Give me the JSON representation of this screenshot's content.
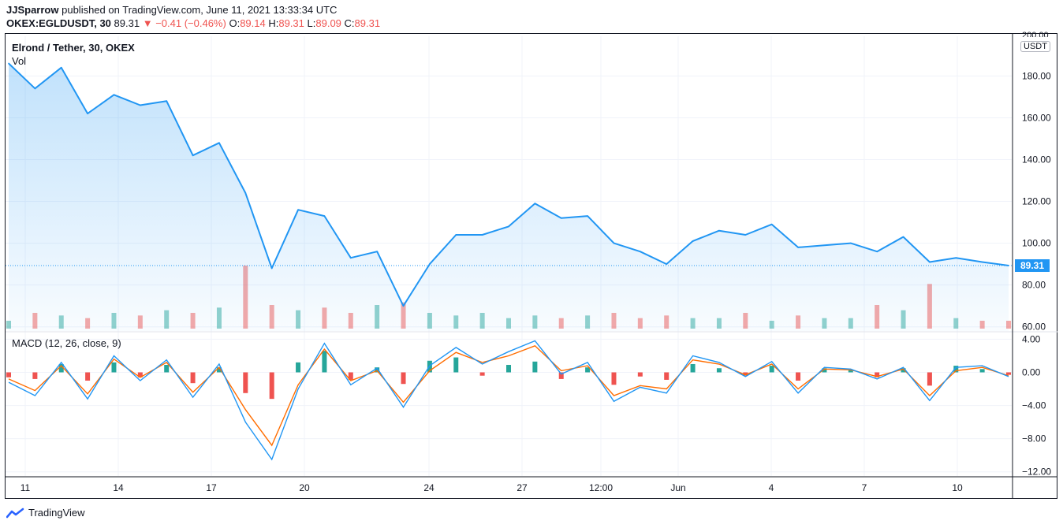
{
  "header": {
    "author": "JJSparrow",
    "published_text": "published on TradingView.com, June 11, 2021 13:33:34 UTC",
    "symbol": "OKEX:EGLDUSDT, 30",
    "last": "89.31",
    "change": "▼ −0.41 (−0.46%)",
    "o_label": "O:",
    "o_value": "89.14",
    "h_label": "H:",
    "h_value": "89.31",
    "l_label": "L:",
    "l_value": "89.09",
    "c_label": "C:",
    "c_value": "89.31"
  },
  "pane": {
    "title": "Elrond / Tether, 30, OKEX",
    "vol_label": "Vol",
    "macd_label": "MACD (12, 26, close, 9)",
    "currency": "USDT",
    "last_price_badge": "89.31",
    "top_tick_partial": "200.00"
  },
  "footer": {
    "brand": "TradingView"
  },
  "colors": {
    "price_line": "#2196f3",
    "macd_line": "#2196f3",
    "signal_line": "#ff6d00",
    "hist_up": "#26a69a",
    "hist_down": "#ef5350",
    "grid": "#f0f3fa"
  },
  "chart_data": [
    {
      "type": "area",
      "y_ticks": [
        "180.00",
        "160.00",
        "140.00",
        "120.00",
        "100.00",
        "80.00",
        "60.00"
      ],
      "y_tick_values": [
        180,
        160,
        140,
        120,
        100,
        80,
        60
      ],
      "ylim": [
        58,
        199
      ],
      "x_ticks": [
        "11",
        "14",
        "17",
        "20",
        "24",
        "27",
        "12:00",
        "Jun",
        "4",
        "7",
        "10"
      ],
      "x": [
        "11",
        "12",
        "13",
        "14",
        "15",
        "16",
        "17",
        "18",
        "19",
        "19.3",
        "19.6",
        "20",
        "21",
        "22",
        "23",
        "23.5",
        "24",
        "25",
        "26",
        "26.5",
        "27",
        "28",
        "28.5",
        "29",
        "30",
        "31",
        "Jun",
        "2",
        "3",
        "3.5",
        "4",
        "5",
        "6",
        "7",
        "7.5",
        "8",
        "9",
        "10",
        "11"
      ],
      "series": [
        {
          "values": [
            186,
            174,
            184,
            162,
            171,
            166,
            168,
            142,
            148,
            124,
            88,
            116,
            113,
            93,
            96,
            70,
            90,
            104,
            104,
            108,
            119,
            112,
            113,
            100,
            96,
            90,
            101,
            106,
            104,
            109,
            98,
            99,
            100,
            96,
            103,
            91,
            93,
            91,
            89.31
          ]
        }
      ],
      "last_value": 89.31
    },
    {
      "type": "bar",
      "name": "Vol",
      "values": [
        3,
        6,
        5,
        4,
        6,
        5,
        7,
        6,
        8,
        24,
        9,
        7,
        8,
        6,
        9,
        10,
        6,
        5,
        6,
        4,
        5,
        4,
        5,
        6,
        4,
        5,
        4,
        4,
        6,
        3,
        5,
        4,
        4,
        9,
        7,
        17,
        4,
        3,
        3
      ]
    },
    {
      "type": "line",
      "name": "MACD (12, 26, close, 9)",
      "y_ticks": [
        "4.00",
        "0.00",
        "−4.00",
        "−8.00",
        "−12.00"
      ],
      "y_tick_values": [
        4,
        0,
        -4,
        -8,
        -12
      ],
      "ylim": [
        -12.5,
        4.8
      ],
      "macd": [
        -1.2,
        -2.8,
        1.2,
        -3.2,
        2.0,
        -1.0,
        1.5,
        -3.0,
        1.0,
        -6.0,
        -10.5,
        -2.0,
        3.5,
        -1.5,
        0.5,
        -4.2,
        0.8,
        3.0,
        1.0,
        2.5,
        3.8,
        -0.2,
        1.2,
        -3.5,
        -1.8,
        -2.5,
        2.0,
        1.2,
        -0.5,
        1.3,
        -2.5,
        0.6,
        0.4,
        -0.8,
        0.6,
        -3.4,
        0.6,
        0.8,
        -0.5
      ],
      "signal": [
        -0.8,
        -2.2,
        0.8,
        -2.6,
        1.6,
        -0.6,
        1.2,
        -2.4,
        0.6,
        -4.5,
        -8.8,
        -1.5,
        2.8,
        -1.0,
        0.2,
        -3.6,
        0.2,
        2.4,
        1.2,
        2.0,
        3.2,
        0.2,
        0.8,
        -2.8,
        -1.6,
        -2.0,
        1.5,
        1.0,
        -0.3,
        1.0,
        -2.0,
        0.4,
        0.3,
        -0.5,
        0.4,
        -2.8,
        0.2,
        0.6,
        -0.4
      ],
      "histogram": [
        -0.6,
        -0.8,
        1.0,
        -1.0,
        1.2,
        -0.6,
        0.9,
        -1.3,
        0.6,
        -2.5,
        -3.2,
        1.2,
        2.6,
        -0.9,
        0.6,
        -1.4,
        1.4,
        1.8,
        -0.4,
        0.9,
        1.3,
        -0.8,
        0.6,
        -1.5,
        -0.5,
        -0.9,
        1.0,
        0.5,
        -0.4,
        0.8,
        -1.0,
        0.5,
        0.3,
        -0.6,
        0.5,
        -1.6,
        0.8,
        0.4,
        -0.3
      ]
    }
  ]
}
